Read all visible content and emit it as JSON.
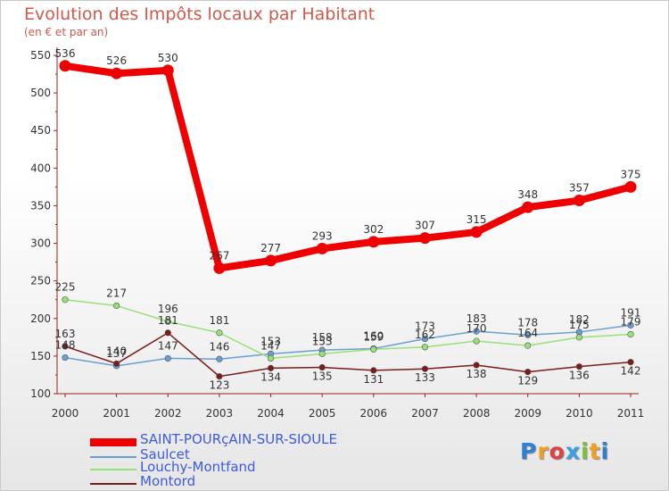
{
  "chart_data": {
    "type": "line",
    "title": "Evolution des Impôts locaux par Habitant",
    "subtitle": "(en € et par an)",
    "xlabel": "",
    "ylabel": "",
    "categories": [
      "2000",
      "2001",
      "2002",
      "2003",
      "2004",
      "2005",
      "2006",
      "2007",
      "2008",
      "2009",
      "2010",
      "2011"
    ],
    "ylim": [
      100,
      550
    ],
    "yticks": [
      100,
      150,
      200,
      250,
      300,
      350,
      400,
      450,
      500,
      550
    ],
    "legend_position": "bottom-left",
    "series": [
      {
        "name": "SAINT-POURçAIN-SUR-SIOULE",
        "color": "#ee0000",
        "values": [
          536,
          526,
          530,
          267,
          277,
          293,
          302,
          307,
          315,
          348,
          357,
          375
        ]
      },
      {
        "name": "Saulcet",
        "color": "#6a9fd0",
        "values": [
          148,
          137,
          147,
          146,
          153,
          158,
          160,
          173,
          183,
          178,
          182,
          191
        ]
      },
      {
        "name": "Louchy-Montfand",
        "color": "#98e078",
        "values": [
          225,
          217,
          196,
          181,
          147,
          153,
          159,
          162,
          170,
          164,
          175,
          179
        ]
      },
      {
        "name": "Montord",
        "color": "#7a1c1c",
        "values": [
          163,
          140,
          181,
          123,
          134,
          135,
          131,
          133,
          138,
          129,
          136,
          142
        ]
      }
    ]
  },
  "logo": {
    "text": "Proxiti",
    "letters": [
      "P",
      "r",
      "o",
      "x",
      "i",
      "t",
      "i"
    ]
  }
}
